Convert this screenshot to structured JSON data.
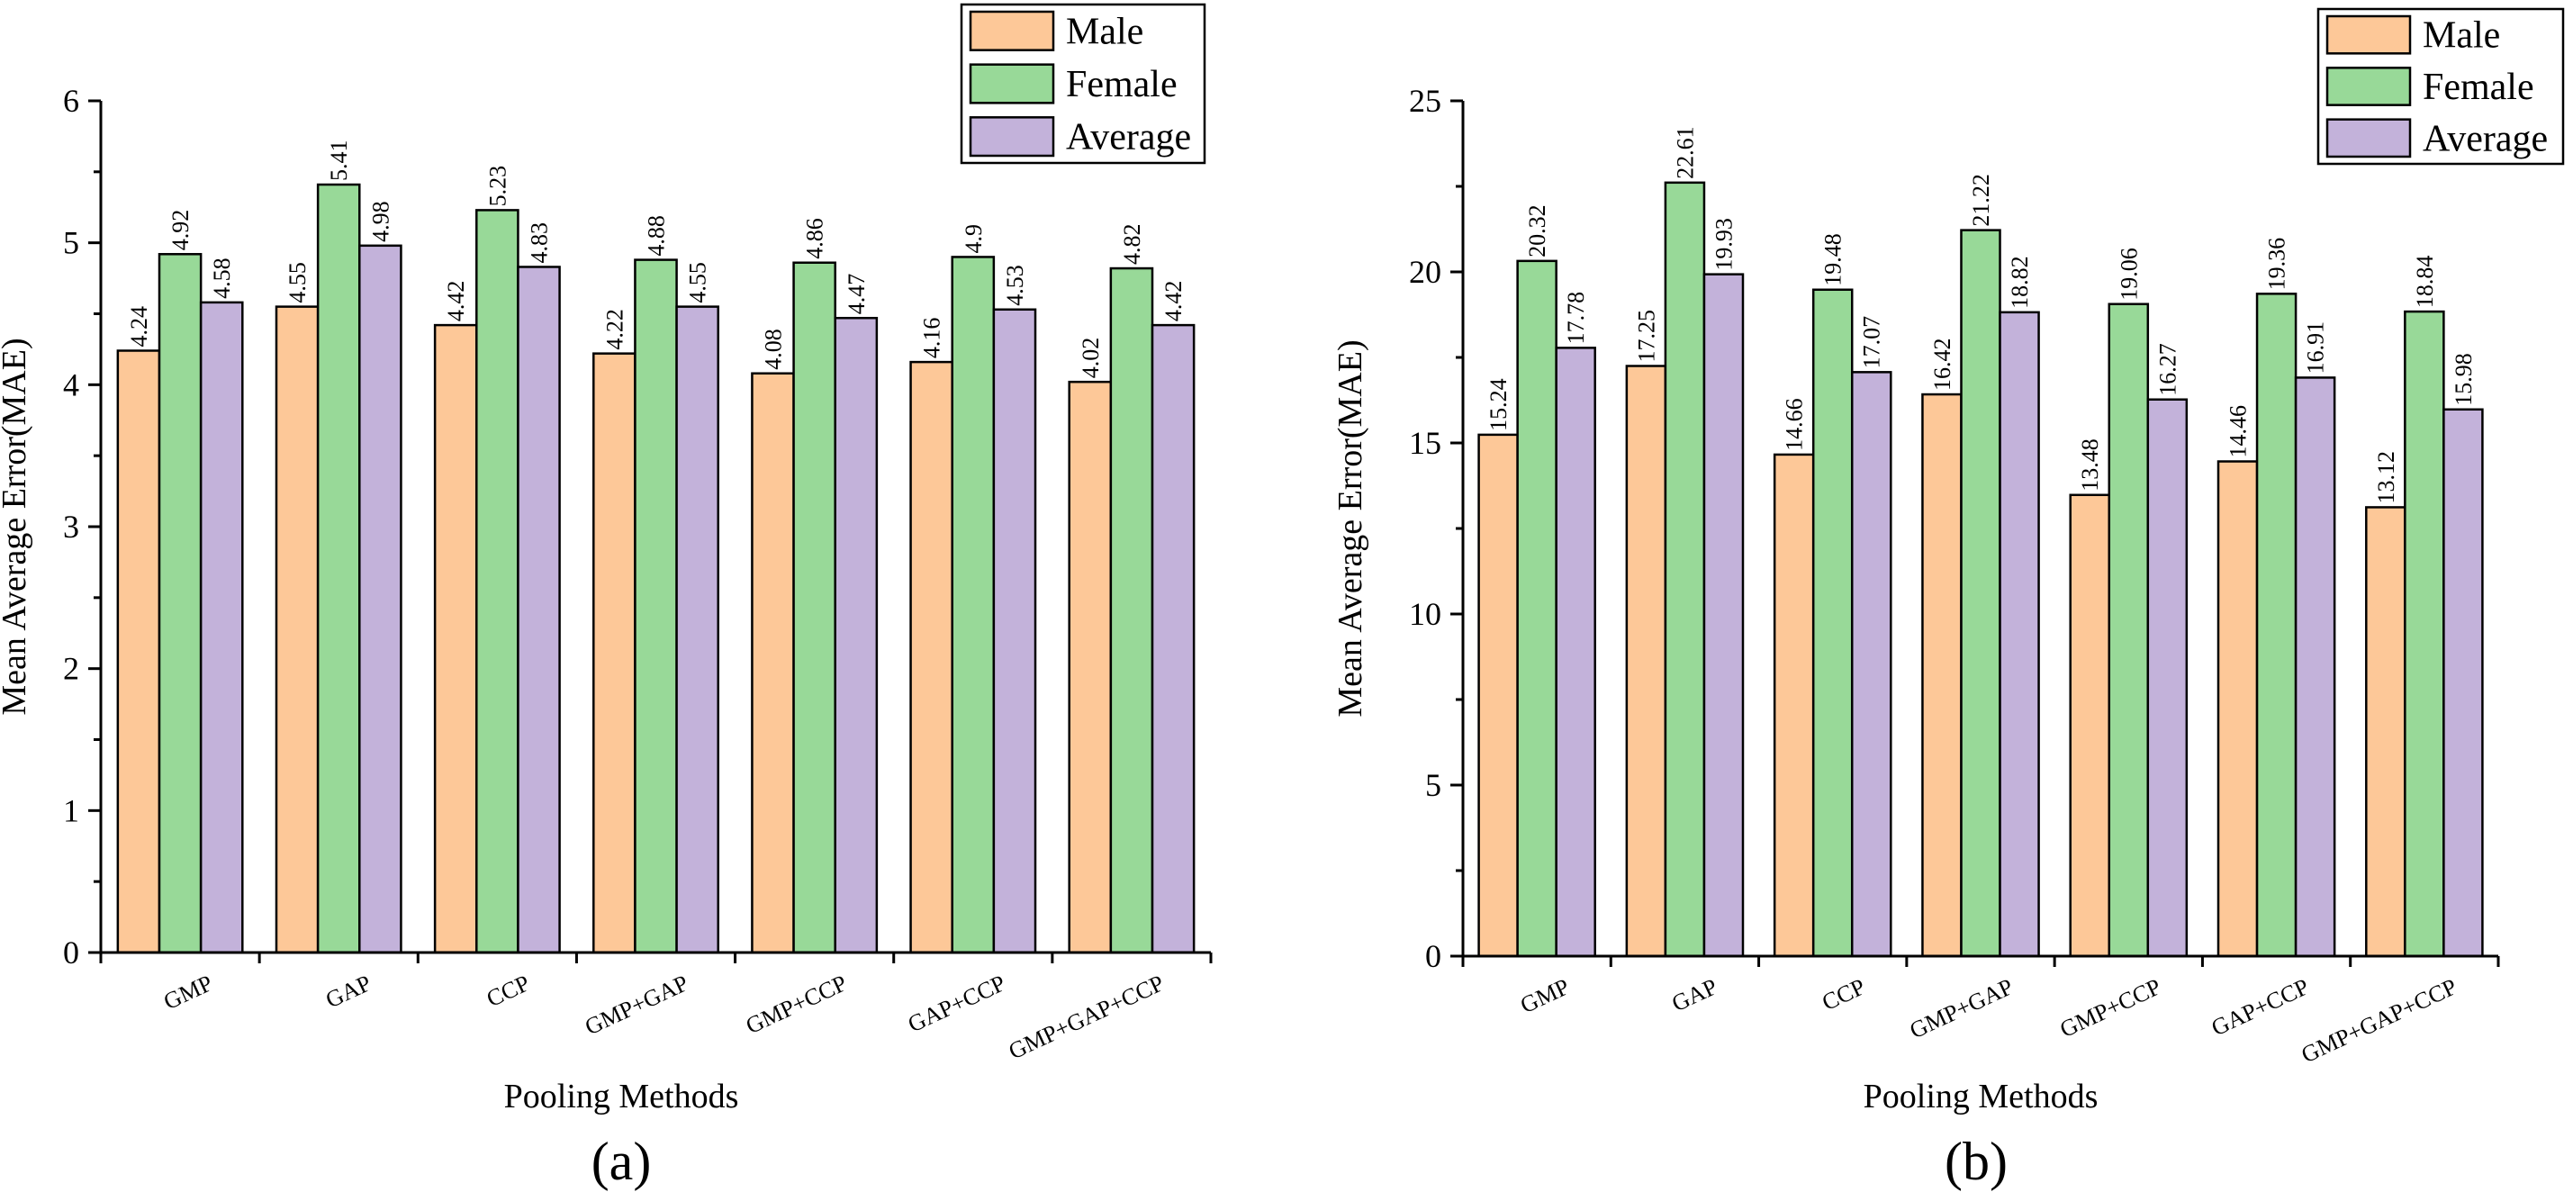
{
  "colors": {
    "male": "#fdc898",
    "female": "#98d998",
    "average": "#c3b2da"
  },
  "chart_data": [
    {
      "type": "bar",
      "panel_label": "(a)",
      "xlabel": "Pooling Methods",
      "ylabel": "Mean Average Error(MAE)",
      "categories": [
        "GMP",
        "GAP",
        "CCP",
        "GMP+GAP",
        "GMP+CCP",
        "GAP+CCP",
        "GMP+GAP+CCP"
      ],
      "ylim": [
        0,
        6
      ],
      "yticks": [
        0,
        1,
        2,
        3,
        4,
        5,
        6
      ],
      "yticklabels": [
        "0",
        "1",
        "2",
        "3",
        "4",
        "5",
        "6"
      ],
      "legend_position": "top-right",
      "series": [
        {
          "name": "Male",
          "color_key": "male",
          "values": [
            4.24,
            4.55,
            4.42,
            4.22,
            4.08,
            4.16,
            4.02
          ],
          "labels": [
            "4.24",
            "4.55",
            "4.42",
            "4.22",
            "4.08",
            "4.16",
            "4.02"
          ]
        },
        {
          "name": "Female",
          "color_key": "female",
          "values": [
            4.92,
            5.41,
            5.23,
            4.88,
            4.86,
            4.9,
            4.82
          ],
          "labels": [
            "4.92",
            "5.41",
            "5.23",
            "4.88",
            "4.86",
            "4.9",
            "4.82"
          ]
        },
        {
          "name": "Average",
          "color_key": "average",
          "values": [
            4.58,
            4.98,
            4.83,
            4.55,
            4.47,
            4.53,
            4.42
          ],
          "labels": [
            "4.58",
            "4.98",
            "4.83",
            "4.55",
            "4.47",
            "4.53",
            "4.42"
          ]
        }
      ]
    },
    {
      "type": "bar",
      "panel_label": "(b)",
      "xlabel": "Pooling Methods",
      "ylabel": "Mean Average Error(MAE)",
      "categories": [
        "GMP",
        "GAP",
        "CCP",
        "GMP+GAP",
        "GMP+CCP",
        "GAP+CCP",
        "GMP+GAP+CCP"
      ],
      "ylim": [
        0,
        25
      ],
      "yticks": [
        0,
        5,
        10,
        15,
        20,
        25
      ],
      "yticklabels": [
        "0",
        "5",
        "10",
        "15",
        "20",
        "25"
      ],
      "legend_position": "top-right",
      "series": [
        {
          "name": "Male",
          "color_key": "male",
          "values": [
            15.24,
            17.25,
            14.66,
            16.42,
            13.48,
            14.46,
            13.12
          ],
          "labels": [
            "15.24",
            "17.25",
            "14.66",
            "16.42",
            "13.48",
            "14.46",
            "13.12"
          ]
        },
        {
          "name": "Female",
          "color_key": "female",
          "values": [
            20.32,
            22.61,
            19.48,
            21.22,
            19.06,
            19.36,
            18.84
          ],
          "labels": [
            "20.32",
            "22.61",
            "19.48",
            "21.22",
            "19.06",
            "19.36",
            "18.84"
          ]
        },
        {
          "name": "Average",
          "color_key": "average",
          "values": [
            17.78,
            19.93,
            17.07,
            18.82,
            16.27,
            16.91,
            15.98
          ],
          "labels": [
            "17.78",
            "19.93",
            "17.07",
            "18.82",
            "16.27",
            "16.91",
            "15.98"
          ]
        }
      ]
    }
  ]
}
